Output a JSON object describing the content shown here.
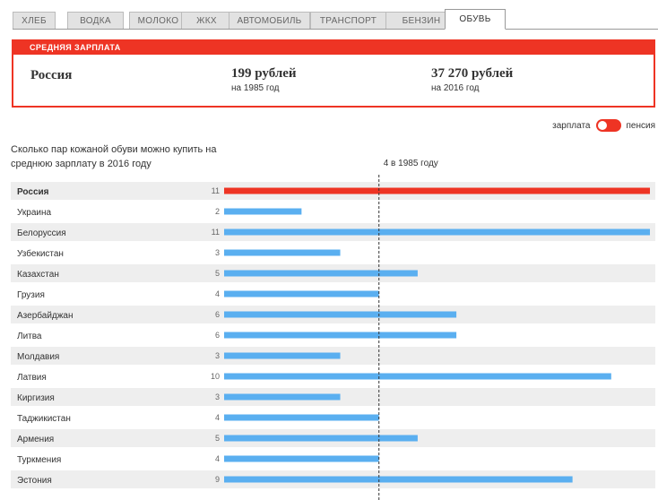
{
  "tabs": [
    {
      "label": "ХЛЕБ",
      "active": false
    },
    {
      "label": "ВОДКА",
      "active": false
    },
    {
      "label": "МОЛОКО",
      "active": false
    },
    {
      "label": "ЖКХ",
      "active": false
    },
    {
      "label": "АВТОМОБИЛЬ",
      "active": false
    },
    {
      "label": "ТРАНСПОРТ",
      "active": false
    },
    {
      "label": "БЕНЗИН",
      "active": false
    },
    {
      "label": "ОБУВЬ",
      "active": true
    }
  ],
  "salary_panel": {
    "header": "СРЕДНЯЯ ЗАРПЛАТА",
    "country": "Россия",
    "old": {
      "amount": "199 рублей",
      "year": "на 1985 год"
    },
    "new": {
      "amount": "37 270 рублей",
      "year": "на 2016 год"
    }
  },
  "toggle": {
    "left_label": "зарплата",
    "right_label": "пенсия",
    "state": "зарплата"
  },
  "colors": {
    "accent": "#ee3424",
    "bar": "#5aaff0",
    "highlight_bar": "#ee3424",
    "row_shade": "#eeeeee"
  },
  "chart_data": {
    "type": "bar",
    "orientation": "horizontal",
    "title": "Сколько пар кожаной обуви можно купить на среднюю зарплату в 2016 году",
    "reference": {
      "value": 4,
      "label": "4 в 1985 году"
    },
    "xlim": [
      0,
      11
    ],
    "highlight": "Россия",
    "categories": [
      "Россия",
      "Украина",
      "Белоруссия",
      "Узбекистан",
      "Казахстан",
      "Грузия",
      "Азербайджан",
      "Литва",
      "Молдавия",
      "Латвия",
      "Киргизия",
      "Таджикистан",
      "Армения",
      "Туркмения",
      "Эстония"
    ],
    "values": [
      11,
      2,
      11,
      3,
      5,
      4,
      6,
      6,
      3,
      10,
      3,
      4,
      5,
      4,
      9
    ]
  }
}
